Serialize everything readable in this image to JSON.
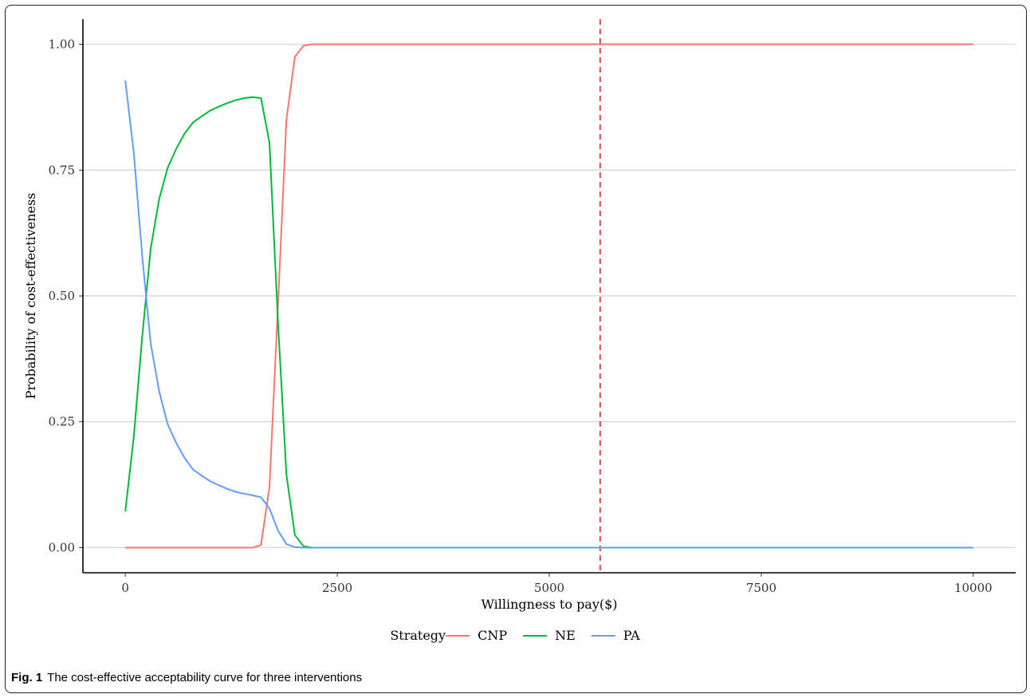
{
  "caption": {
    "label": "Fig. 1",
    "text": "The cost-effective acceptability curve for three interventions"
  },
  "chart_data": {
    "type": "line",
    "title": "",
    "xlabel": "Willingness to pay($)",
    "ylabel": "Probability of cost-effectiveness",
    "xlim": [
      -500,
      10500
    ],
    "ylim": [
      -0.05,
      1.05
    ],
    "x_ticks": [
      0,
      2500,
      5000,
      7500,
      10000
    ],
    "x_tick_labels": [
      "0",
      "2500",
      "5000",
      "7500",
      "10000"
    ],
    "y_ticks": [
      0,
      0.25,
      0.5,
      0.75,
      1.0
    ],
    "y_tick_labels": [
      "0.00",
      "0.25",
      "0.50",
      "0.75",
      "1.00"
    ],
    "grid": "horizontal major",
    "legend": {
      "title": "Strategy",
      "position": "bottom"
    },
    "reference_line": {
      "x": 5600,
      "style": "dashed",
      "color": "#d62728"
    },
    "x": [
      0,
      100,
      200,
      300,
      400,
      500,
      600,
      700,
      800,
      900,
      1000,
      1100,
      1200,
      1300,
      1400,
      1500,
      1600,
      1700,
      1800,
      1900,
      2000,
      2100,
      2200,
      2300,
      2500,
      5000,
      7500,
      10000
    ],
    "series": [
      {
        "name": "CNP",
        "color": "#F8766D",
        "values": [
          0,
          0,
          0,
          0,
          0,
          0,
          0,
          0,
          0,
          0,
          0,
          0,
          0,
          0,
          0,
          0,
          0.005,
          0.12,
          0.48,
          0.85,
          0.975,
          0.997,
          1.0,
          1.0,
          1.0,
          1.0,
          1.0,
          1.0
        ]
      },
      {
        "name": "NE",
        "color": "#00BA38",
        "values": [
          0.072,
          0.22,
          0.42,
          0.595,
          0.693,
          0.755,
          0.792,
          0.823,
          0.845,
          0.857,
          0.868,
          0.876,
          0.883,
          0.889,
          0.893,
          0.895,
          0.893,
          0.805,
          0.45,
          0.145,
          0.025,
          0.003,
          0,
          0,
          0,
          0,
          0,
          0
        ]
      },
      {
        "name": "PA",
        "color": "#619CFF",
        "values": [
          0.928,
          0.785,
          0.578,
          0.405,
          0.31,
          0.245,
          0.208,
          0.178,
          0.155,
          0.143,
          0.132,
          0.124,
          0.117,
          0.111,
          0.107,
          0.104,
          0.1,
          0.078,
          0.034,
          0.007,
          0.001,
          0,
          0,
          0,
          0,
          0,
          0,
          0
        ]
      }
    ]
  }
}
